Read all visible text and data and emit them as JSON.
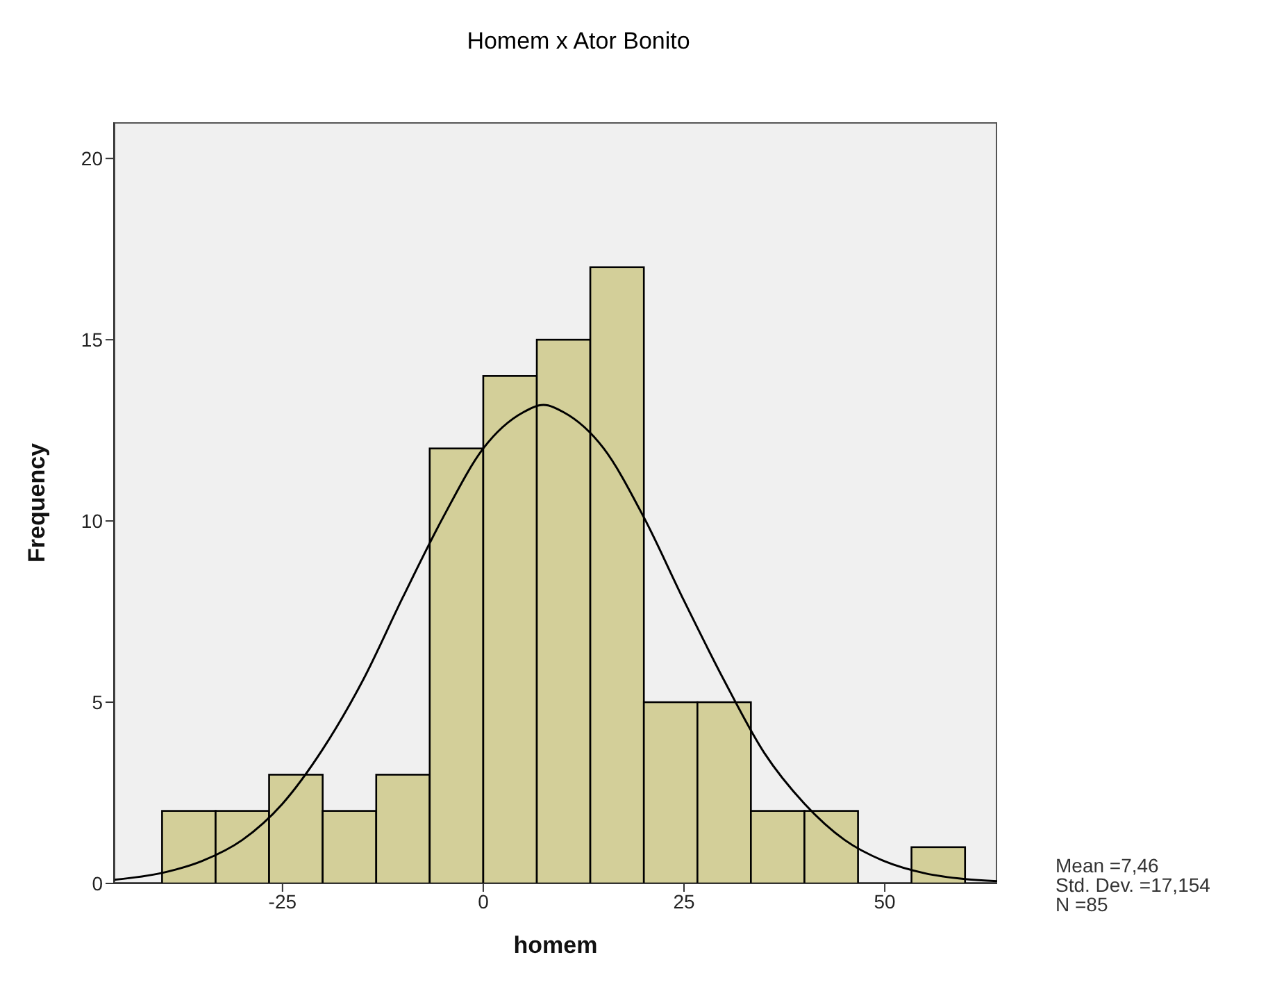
{
  "chart_data": {
    "type": "histogram",
    "title": "Homem x Ator Bonito",
    "xlabel": "homem",
    "ylabel": "Frequency",
    "bins": [
      -40,
      -33.33,
      -26.67,
      -20,
      -13.33,
      -6.67,
      0,
      6.67,
      13.33,
      20,
      26.67,
      33.33,
      40,
      46.67,
      53.33,
      60
    ],
    "series": [
      {
        "color": "#d3cf99",
        "values": [
          2,
          2,
          3,
          2,
          3,
          12,
          14,
          15,
          17,
          5,
          5,
          2,
          2,
          0,
          1
        ]
      },
      {
        "type": "line",
        "color": "#000000",
        "x": [
          -46,
          -40,
          -35,
          -30,
          -25,
          -20,
          -15,
          -10,
          -5,
          0,
          5,
          7.5,
          10,
          15,
          20,
          25,
          30,
          35,
          40,
          45,
          50,
          55,
          60,
          64
        ],
        "values": [
          0.1,
          0.29,
          0.62,
          1.2,
          2.2,
          3.7,
          5.6,
          7.9,
          10.1,
          12.0,
          13.0,
          13.2,
          13.0,
          12.0,
          10.1,
          7.8,
          5.6,
          3.6,
          2.2,
          1.2,
          0.61,
          0.28,
          0.12,
          0.06
        ]
      }
    ],
    "xlim": [
      -46,
      64
    ],
    "xticks": [
      -25,
      0,
      25,
      50
    ],
    "ylim": [
      0,
      21
    ],
    "yticks": [
      0,
      5,
      10,
      15,
      20
    ],
    "grid": false,
    "marker": "none",
    "annotations": [
      "Mean =7,46",
      "Std. Dev. =17,154",
      "N =85"
    ]
  }
}
